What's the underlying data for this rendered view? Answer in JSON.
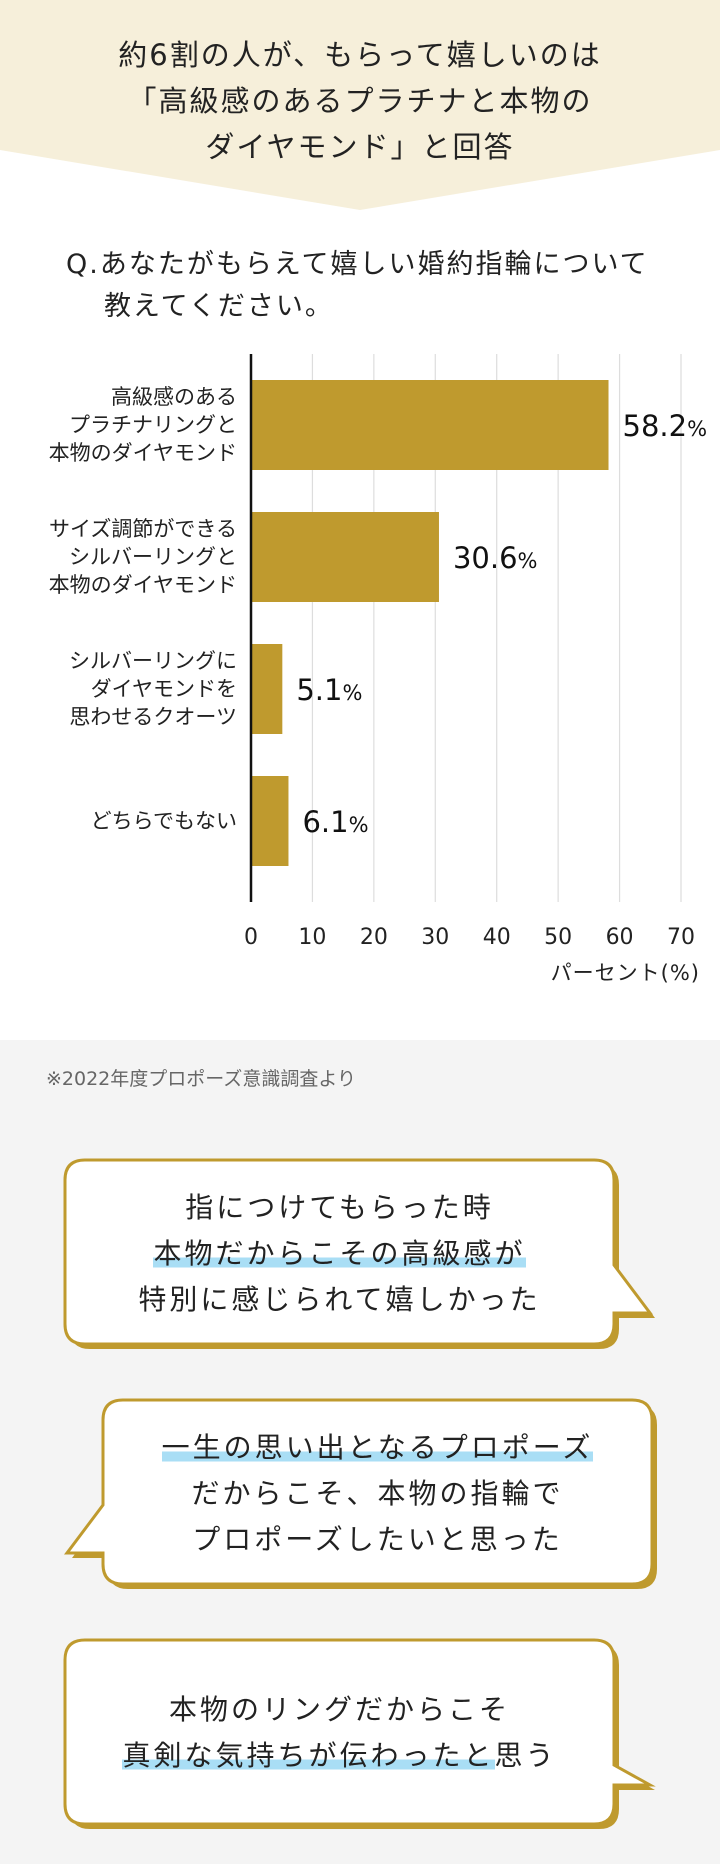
{
  "banner": {
    "line1": "約6割の人が、もらって嬉しいのは",
    "line2": "「高級感のあるプラチナと本物の",
    "line3": "ダイヤモンド」と回答",
    "bg_color": "#f6efda"
  },
  "question": {
    "line1": "Q.あなたがもらえて嬉しい婚約指輪について",
    "line2": "教えてください。"
  },
  "chart_data": {
    "type": "bar",
    "orientation": "horizontal",
    "categories": [
      [
        "高級感のある",
        "プラチナリングと",
        "本物のダイヤモンド"
      ],
      [
        "サイズ調節ができる",
        "シルバーリングと",
        "本物のダイヤモンド"
      ],
      [
        "シルバーリングに",
        "ダイヤモンドを",
        "思わせるクオーツ"
      ],
      [
        "どちらでもない"
      ]
    ],
    "values": [
      58.2,
      30.6,
      5.1,
      6.1
    ],
    "value_labels": [
      "58.2",
      "30.6",
      "5.1",
      "6.1"
    ],
    "value_unit": "%",
    "xlim": [
      0,
      70
    ],
    "xticks": [
      "0",
      "10",
      "20",
      "30",
      "40",
      "50",
      "60",
      "70"
    ],
    "xlabel": "パーセント(%)",
    "grid": true,
    "bar_color": "#bf9a2e"
  },
  "source": "※2022年度プロポーズ意識調査より",
  "bubbles": {
    "b1": {
      "line1": "指につけてもらった時",
      "line2": "本物だからこその高級感が",
      "line3": "特別に感じられて嬉しかった"
    },
    "b2": {
      "line1": "一生の思い出となるプロポーズ",
      "line2": "だからこそ、本物の指輪で",
      "line3": "プロポーズしたいと思った"
    },
    "b3": {
      "line1": "本物のリングだからこそ",
      "line2_highlight": "真剣な気持ちが伝わったと",
      "line2_rest": "思う"
    },
    "border_color": "#bf9a2e",
    "highlight_color": "#a9def5"
  }
}
